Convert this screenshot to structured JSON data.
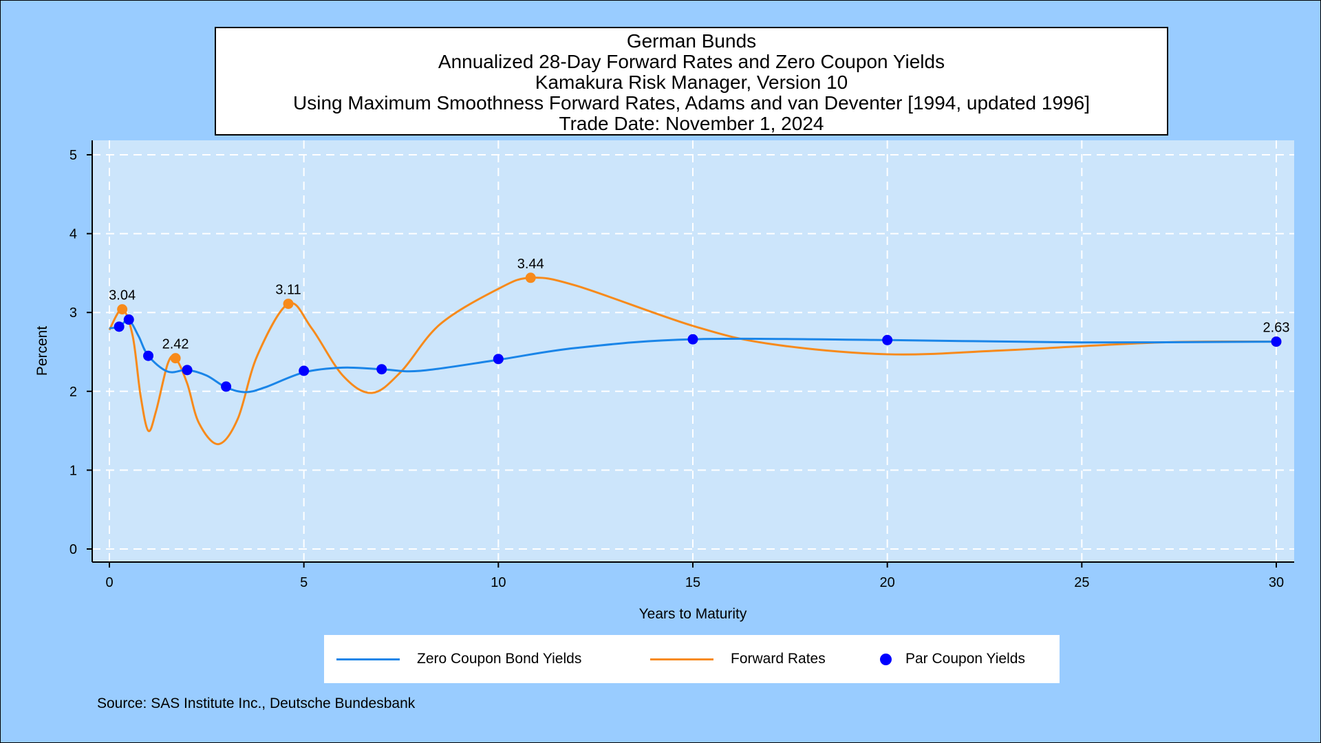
{
  "title_lines": [
    "German Bunds",
    "Annualized 28-Day Forward Rates and Zero Coupon Yields",
    "Kamakura Risk Manager, Version 10",
    "Using Maximum Smoothness Forward Rates, Adams and van Deventer [1994, updated 1996]",
    "Trade Date: November 1, 2024"
  ],
  "legend": {
    "zero": "Zero Coupon Bond Yields",
    "forward": "Forward Rates",
    "par": "Par Coupon Yields"
  },
  "source": "Source: SAS Institute Inc., Deutsche Bundesbank",
  "colors": {
    "background": "#99ccff",
    "plot_area": "#cce5fb",
    "zero": "#1a85e8",
    "forward": "#f78a1b",
    "par": "#0000ff",
    "grid": "#ffffff"
  },
  "chart_data": {
    "type": "line",
    "xlabel": "Years to Maturity",
    "ylabel": "Percent",
    "xlim": [
      0,
      30
    ],
    "ylim": [
      0,
      5
    ],
    "x_ticks": [
      0,
      5,
      10,
      15,
      20,
      25,
      30
    ],
    "y_ticks": [
      0,
      1,
      2,
      3,
      4,
      5
    ],
    "grid": true,
    "legend_position": "bottom",
    "series": [
      {
        "name": "Zero Coupon Bond Yields",
        "style": "line",
        "x": [
          0,
          0.25,
          0.5,
          0.75,
          1,
          1.5,
          2,
          2.5,
          3,
          3.5,
          4,
          5,
          6,
          7,
          8,
          10,
          12,
          15,
          20,
          25,
          30
        ],
        "y": [
          2.8,
          2.82,
          2.9,
          2.7,
          2.45,
          2.25,
          2.27,
          2.2,
          2.05,
          1.99,
          2.05,
          2.24,
          2.3,
          2.28,
          2.26,
          2.4,
          2.55,
          2.66,
          2.65,
          2.62,
          2.63
        ]
      },
      {
        "name": "Forward Rates",
        "style": "line",
        "x": [
          0,
          0.33,
          0.6,
          0.8,
          1,
          1.2,
          1.5,
          1.7,
          2,
          2.3,
          2.8,
          3.3,
          3.8,
          4.6,
          5.2,
          6,
          6.75,
          7.5,
          8.5,
          10,
          10.83,
          12,
          15,
          17,
          20,
          23,
          27,
          30
        ],
        "y": [
          2.78,
          3.04,
          2.7,
          1.95,
          1.5,
          1.75,
          2.35,
          2.42,
          2.1,
          1.6,
          1.33,
          1.65,
          2.45,
          3.11,
          2.8,
          2.2,
          1.98,
          2.25,
          2.85,
          3.3,
          3.44,
          3.34,
          2.83,
          2.6,
          2.47,
          2.52,
          2.62,
          2.63
        ]
      },
      {
        "name": "Par Coupon Yields",
        "style": "points",
        "x": [
          0.25,
          0.5,
          1,
          2,
          3,
          5,
          7,
          10,
          15,
          20,
          30
        ],
        "y": [
          2.82,
          2.91,
          2.45,
          2.27,
          2.06,
          2.26,
          2.28,
          2.41,
          2.66,
          2.65,
          2.63
        ]
      }
    ],
    "forward_markers": {
      "x": [
        0.33,
        1.7,
        4.6,
        10.83,
        30
      ],
      "y": [
        3.04,
        2.42,
        3.11,
        3.44,
        2.63
      ]
    },
    "annotations": [
      {
        "text": "3.04",
        "x": 0.33,
        "y": 3.04
      },
      {
        "text": "2.42",
        "x": 1.7,
        "y": 2.42
      },
      {
        "text": "3.11",
        "x": 4.6,
        "y": 3.11
      },
      {
        "text": "3.44",
        "x": 10.83,
        "y": 3.44
      },
      {
        "text": "2.63",
        "x": 30,
        "y": 2.63
      }
    ]
  }
}
